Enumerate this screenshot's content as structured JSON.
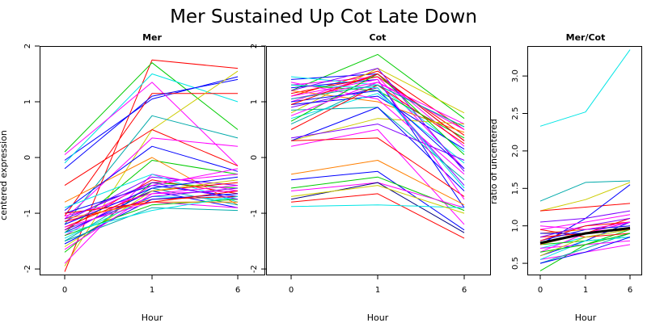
{
  "title": "Mer Sustained Up Cot Late Down",
  "chart_data": [
    {
      "type": "line",
      "title": "Mer",
      "xlabel": "Hour",
      "ylabel": "centered expression",
      "x": [
        0,
        1,
        6
      ],
      "x_ticks": [
        "0",
        "1",
        "6"
      ],
      "ylim": [
        -2.1,
        2.0
      ],
      "y_ticks": [
        "-2",
        "-1",
        "0",
        "1",
        "2"
      ],
      "series": [
        {
          "color": "#ff0000",
          "values": [
            -2.05,
            1.75,
            1.6
          ]
        },
        {
          "color": "#0000ff",
          "values": [
            -0.05,
            1.05,
            1.45
          ]
        },
        {
          "color": "#00cc00",
          "values": [
            0.1,
            1.7,
            0.5
          ]
        },
        {
          "color": "#00e5e5",
          "values": [
            -0.1,
            1.5,
            1.0
          ]
        },
        {
          "color": "#ff00ff",
          "values": [
            0.05,
            1.35,
            -0.15
          ]
        },
        {
          "color": "#ff0000",
          "values": [
            -1.05,
            1.15,
            1.15
          ]
        },
        {
          "color": "#0000ff",
          "values": [
            -0.2,
            1.1,
            1.4
          ]
        },
        {
          "color": "#cccc00",
          "values": [
            -1.95,
            0.5,
            1.55
          ]
        },
        {
          "color": "#ff0000",
          "values": [
            -0.5,
            0.5,
            -0.15
          ]
        },
        {
          "color": "#00aaaa",
          "values": [
            -1.2,
            0.75,
            0.35
          ]
        },
        {
          "color": "#ff00ff",
          "values": [
            -1.1,
            0.35,
            0.2
          ]
        },
        {
          "color": "#00cc00",
          "values": [
            -1.35,
            -0.05,
            -0.3
          ]
        },
        {
          "color": "#ff7f00",
          "values": [
            -0.8,
            0.0,
            -0.85
          ]
        },
        {
          "color": "#0000ff",
          "values": [
            -0.95,
            0.2,
            -0.25
          ]
        },
        {
          "color": "#ff00ff",
          "values": [
            -1.9,
            -0.3,
            -0.6
          ]
        },
        {
          "color": "#7f00ff",
          "values": [
            -1.15,
            -0.35,
            -0.5
          ]
        },
        {
          "color": "#00e5e5",
          "values": [
            -0.9,
            -0.3,
            -0.8
          ]
        },
        {
          "color": "#ff0000",
          "values": [
            -1.3,
            -0.4,
            -0.65
          ]
        },
        {
          "color": "#ff00ff",
          "values": [
            -1.2,
            -0.45,
            -0.3
          ]
        },
        {
          "color": "#0000ff",
          "values": [
            -1.0,
            -0.5,
            -0.7
          ]
        },
        {
          "color": "#00cc00",
          "values": [
            -1.7,
            -0.45,
            -0.55
          ]
        },
        {
          "color": "#ff00ff",
          "values": [
            -1.4,
            -0.5,
            -0.2
          ]
        },
        {
          "color": "#00aaaa",
          "values": [
            -1.5,
            -0.55,
            -0.85
          ]
        },
        {
          "color": "#ff0000",
          "values": [
            -1.25,
            -0.6,
            -0.45
          ]
        },
        {
          "color": "#0000ff",
          "values": [
            -1.35,
            -0.6,
            -0.9
          ]
        },
        {
          "color": "#ff00ff",
          "values": [
            -1.05,
            -0.65,
            -0.6
          ]
        },
        {
          "color": "#cccc00",
          "values": [
            -1.6,
            -0.6,
            -0.4
          ]
        },
        {
          "color": "#00e5e5",
          "values": [
            -1.45,
            -0.7,
            -0.75
          ]
        },
        {
          "color": "#7f00ff",
          "values": [
            -1.3,
            -0.7,
            -0.55
          ]
        },
        {
          "color": "#ff0000",
          "values": [
            -1.15,
            -0.75,
            -0.7
          ]
        },
        {
          "color": "#0000ff",
          "values": [
            -1.55,
            -0.75,
            -0.65
          ]
        },
        {
          "color": "#ff00ff",
          "values": [
            -1.25,
            -0.8,
            -0.9
          ]
        },
        {
          "color": "#00cc00",
          "values": [
            -1.4,
            -0.85,
            -0.75
          ]
        },
        {
          "color": "#ff7f00",
          "values": [
            -1.1,
            -0.8,
            -0.8
          ]
        },
        {
          "color": "#00aaaa",
          "values": [
            -1.5,
            -0.9,
            -0.95
          ]
        },
        {
          "color": "#ff00ff",
          "values": [
            -1.65,
            -0.65,
            -0.5
          ]
        },
        {
          "color": "#0000ff",
          "values": [
            -1.2,
            -0.55,
            -0.35
          ]
        },
        {
          "color": "#ff0000",
          "values": [
            -1.0,
            -0.8,
            -0.6
          ]
        },
        {
          "color": "#00e5e5",
          "values": [
            -1.35,
            -0.95,
            -0.7
          ]
        },
        {
          "color": "#7f00ff",
          "values": [
            -1.1,
            -0.45,
            -0.75
          ]
        }
      ]
    },
    {
      "type": "line",
      "title": "Cot",
      "xlabel": "Hour",
      "ylabel": "",
      "x": [
        0,
        1,
        6
      ],
      "x_ticks": [
        "0",
        "1",
        "6"
      ],
      "ylim": [
        -2.1,
        2.0
      ],
      "y_ticks": [
        "-2",
        "-1",
        "0",
        "1",
        "2"
      ],
      "series": [
        {
          "color": "#00cc00",
          "values": [
            1.2,
            1.85,
            0.7
          ]
        },
        {
          "color": "#0000ff",
          "values": [
            1.4,
            1.5,
            0.3
          ]
        },
        {
          "color": "#ff00ff",
          "values": [
            1.3,
            1.45,
            -0.2
          ]
        },
        {
          "color": "#ff0000",
          "values": [
            1.1,
            1.55,
            0.5
          ]
        },
        {
          "color": "#00e5e5",
          "values": [
            1.45,
            1.3,
            0.1
          ]
        },
        {
          "color": "#cccc00",
          "values": [
            0.8,
            1.6,
            0.8
          ]
        },
        {
          "color": "#0000ff",
          "values": [
            1.25,
            1.4,
            -0.9
          ]
        },
        {
          "color": "#ff00ff",
          "values": [
            1.0,
            1.5,
            0.2
          ]
        },
        {
          "color": "#00aaaa",
          "values": [
            0.6,
            1.3,
            0.55
          ]
        },
        {
          "color": "#ff0000",
          "values": [
            1.15,
            1.45,
            0.4
          ]
        },
        {
          "color": "#7f00ff",
          "values": [
            0.9,
            1.25,
            -0.5
          ]
        },
        {
          "color": "#00cc00",
          "values": [
            1.3,
            1.2,
            0.35
          ]
        },
        {
          "color": "#ff00ff",
          "values": [
            1.05,
            1.35,
            0.6
          ]
        },
        {
          "color": "#0000ff",
          "values": [
            0.95,
            1.1,
            0.15
          ]
        },
        {
          "color": "#ff7f00",
          "values": [
            1.2,
            1.0,
            0.45
          ]
        },
        {
          "color": "#00e5e5",
          "values": [
            0.7,
            1.15,
            -0.1
          ]
        },
        {
          "color": "#ff00ff",
          "values": [
            1.35,
            1.05,
            -0.3
          ]
        },
        {
          "color": "#ff0000",
          "values": [
            0.5,
            1.3,
            0.25
          ]
        },
        {
          "color": "#cccc00",
          "values": [
            0.3,
            0.7,
            0.6
          ]
        },
        {
          "color": "#ff00ff",
          "values": [
            0.2,
            0.5,
            -1.2
          ]
        },
        {
          "color": "#00aaaa",
          "values": [
            0.85,
            0.9,
            -0.4
          ]
        },
        {
          "color": "#0000ff",
          "values": [
            0.3,
            0.9,
            -0.6
          ]
        },
        {
          "color": "#7f00ff",
          "values": [
            0.35,
            0.6,
            -0.05
          ]
        },
        {
          "color": "#ff0000",
          "values": [
            0.3,
            0.35,
            -0.7
          ]
        },
        {
          "color": "#ff7f00",
          "values": [
            -0.3,
            -0.05,
            -0.85
          ]
        },
        {
          "color": "#0000ff",
          "values": [
            -0.4,
            -0.25,
            -1.3
          ]
        },
        {
          "color": "#00cc00",
          "values": [
            -0.55,
            -0.35,
            -0.95
          ]
        },
        {
          "color": "#ff00ff",
          "values": [
            -0.6,
            -0.45,
            -0.9
          ]
        },
        {
          "color": "#ff0000",
          "values": [
            -0.8,
            -0.65,
            -1.45
          ]
        },
        {
          "color": "#000080",
          "values": [
            -0.75,
            -0.45,
            -1.35
          ]
        },
        {
          "color": "#00e5e5",
          "values": [
            -0.88,
            -0.85,
            -0.9
          ]
        },
        {
          "color": "#cccc00",
          "values": [
            -0.7,
            -0.5,
            -1.0
          ]
        },
        {
          "color": "#ff00ff",
          "values": [
            1.1,
            1.4,
            -0.75
          ]
        },
        {
          "color": "#00cc00",
          "values": [
            0.65,
            1.5,
            0.05
          ]
        },
        {
          "color": "#0000ff",
          "values": [
            1.0,
            1.2,
            -0.2
          ]
        },
        {
          "color": "#ff0000",
          "values": [
            0.95,
            1.5,
            0.3
          ]
        },
        {
          "color": "#00e5e5",
          "values": [
            1.3,
            1.25,
            -0.55
          ]
        },
        {
          "color": "#ff00ff",
          "values": [
            0.75,
            1.35,
            0.5
          ]
        },
        {
          "color": "#7f00ff",
          "values": [
            1.2,
            1.6,
            -0.25
          ]
        },
        {
          "color": "#00aaaa",
          "values": [
            1.05,
            1.3,
            0.55
          ]
        }
      ]
    },
    {
      "type": "line",
      "title": "Mer/Cot",
      "xlabel": "Hour",
      "ylabel": "ratio of uncentered",
      "x": [
        0,
        1,
        6
      ],
      "x_ticks": [
        "0",
        "1",
        "6"
      ],
      "ylim": [
        0.35,
        3.4
      ],
      "y_ticks": [
        "0.5",
        "1.0",
        "1.5",
        "2.0",
        "2.5",
        "3.0"
      ],
      "series": [
        {
          "color": "#00e5e5",
          "values": [
            2.33,
            2.52,
            3.35
          ]
        },
        {
          "color": "#00aaaa",
          "values": [
            1.33,
            1.58,
            1.6
          ]
        },
        {
          "color": "#cccc00",
          "values": [
            1.2,
            1.35,
            1.58
          ]
        },
        {
          "color": "#ff0000",
          "values": [
            1.2,
            1.25,
            1.3
          ]
        },
        {
          "color": "#0000ff",
          "values": [
            0.75,
            1.1,
            1.55
          ]
        },
        {
          "color": "#7f00ff",
          "values": [
            1.05,
            1.1,
            1.2
          ]
        },
        {
          "color": "#ff00ff",
          "values": [
            0.95,
            1.05,
            1.15
          ]
        },
        {
          "color": "#00cc00",
          "values": [
            0.4,
            0.75,
            0.95
          ]
        },
        {
          "color": "#ff0000",
          "values": [
            0.85,
            0.9,
            1.1
          ]
        },
        {
          "color": "#0000ff",
          "values": [
            0.6,
            0.8,
            1.05
          ]
        },
        {
          "color": "#ff00ff",
          "values": [
            0.55,
            0.65,
            0.75
          ]
        },
        {
          "color": "#00e5e5",
          "values": [
            0.7,
            0.85,
            0.95
          ]
        },
        {
          "color": "#ff7f00",
          "values": [
            0.9,
            0.95,
            1.0
          ]
        },
        {
          "color": "#ff00ff",
          "values": [
            0.65,
            0.9,
            1.05
          ]
        },
        {
          "color": "#00cc00",
          "values": [
            0.75,
            0.8,
            0.85
          ]
        },
        {
          "color": "#0000ff",
          "values": [
            0.8,
            0.95,
            1.0
          ]
        },
        {
          "color": "#ff0000",
          "values": [
            0.95,
            0.85,
            0.9
          ]
        },
        {
          "color": "#00aaaa",
          "values": [
            0.5,
            0.7,
            0.9
          ]
        },
        {
          "color": "#7f00ff",
          "values": [
            0.85,
            1.0,
            1.1
          ]
        },
        {
          "color": "#ff00ff",
          "values": [
            0.7,
            0.75,
            0.8
          ]
        },
        {
          "color": "#cccc00",
          "values": [
            0.6,
            0.85,
            0.95
          ]
        },
        {
          "color": "#ff0000",
          "values": [
            0.8,
            1.0,
            1.05
          ]
        },
        {
          "color": "#0000ff",
          "values": [
            0.9,
            0.9,
            0.95
          ]
        },
        {
          "color": "#00e5e5",
          "values": [
            0.55,
            0.8,
            0.85
          ]
        },
        {
          "color": "#ff00ff",
          "values": [
            1.0,
            0.95,
            1.05
          ]
        },
        {
          "color": "#00cc00",
          "values": [
            0.65,
            0.75,
            0.9
          ]
        },
        {
          "color": "#ff7f00",
          "values": [
            0.75,
            0.9,
            0.95
          ]
        },
        {
          "color": "#0000ff",
          "values": [
            0.5,
            0.65,
            0.85
          ]
        },
        {
          "color": "#000000",
          "width": 3,
          "values": [
            0.77,
            0.9,
            0.97
          ]
        }
      ]
    }
  ]
}
